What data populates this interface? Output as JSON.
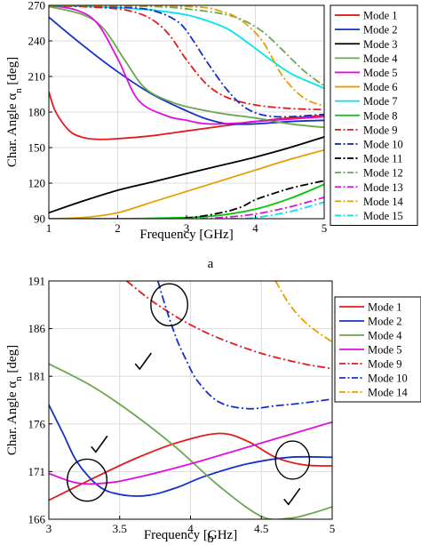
{
  "chart_data": [
    {
      "type": "line",
      "caption": "a",
      "xlabel": "Frequency [GHz]",
      "ylabel_main": "Char. Angle α",
      "ylabel_sub": "n",
      "ylabel_unit": " [deg]",
      "xlim": [
        1,
        5
      ],
      "ylim": [
        90,
        270
      ],
      "xticks": [
        "1",
        "2",
        "3",
        "4",
        "5"
      ],
      "yticks": [
        "90",
        "120",
        "150",
        "180",
        "210",
        "240",
        "270"
      ],
      "xtick_values": [
        1,
        2,
        3,
        4,
        5
      ],
      "ytick_values": [
        90,
        120,
        150,
        180,
        210,
        240,
        270
      ],
      "grid": true,
      "legend_position": "right",
      "series": [
        {
          "name": "Mode 1",
          "color": "#e41a1c",
          "dash": "solid",
          "x": [
            1,
            1.1,
            1.3,
            1.5,
            1.7,
            2,
            2.5,
            3,
            3.5,
            4,
            4.5,
            5
          ],
          "y": [
            197,
            180,
            164,
            158.5,
            157,
            157.5,
            160,
            164,
            168,
            172,
            175,
            177
          ]
        },
        {
          "name": "Mode 2",
          "color": "#1432c8",
          "dash": "solid",
          "x": [
            1,
            1.5,
            2,
            2.5,
            3,
            3.3,
            3.6,
            4,
            4.5,
            5
          ],
          "y": [
            260,
            236,
            214,
            195,
            181,
            174,
            170,
            170,
            172,
            173
          ]
        },
        {
          "name": "Mode 3",
          "color": "#000000",
          "dash": "solid",
          "x": [
            1,
            1.5,
            2,
            2.5,
            3,
            3.5,
            4,
            4.5,
            5
          ],
          "y": [
            95,
            105,
            114,
            121,
            128,
            135,
            142,
            150,
            159
          ]
        },
        {
          "name": "Mode 4",
          "color": "#6aa84f",
          "dash": "solid",
          "x": [
            1,
            1.5,
            1.8,
            2.1,
            2.4,
            2.8,
            3.2,
            3.6,
            4,
            4.5,
            5
          ],
          "y": [
            269,
            262,
            250,
            224,
            200,
            188,
            182,
            178,
            175,
            170,
            167
          ]
        },
        {
          "name": "Mode 5",
          "color": "#e00ee0",
          "dash": "solid",
          "x": [
            1,
            1.4,
            1.7,
            2,
            2.3,
            2.7,
            3,
            3.3,
            3.7,
            4,
            4.5,
            5
          ],
          "y": [
            270,
            266,
            255,
            225,
            190,
            177,
            173,
            170,
            170.5,
            172,
            174,
            176
          ]
        },
        {
          "name": "Mode 6",
          "color": "#e69f00",
          "dash": "solid",
          "x": [
            1,
            1.5,
            2,
            2.5,
            3,
            3.5,
            4,
            4.5,
            5
          ],
          "y": [
            90,
            91,
            95,
            104,
            113,
            122,
            131,
            140,
            148
          ]
        },
        {
          "name": "Mode 7",
          "color": "#00e5ee",
          "dash": "solid",
          "x": [
            1,
            2,
            2.5,
            3,
            3.3,
            3.6,
            3.9,
            4.2,
            4.5,
            4.8,
            5
          ],
          "y": [
            270,
            268,
            266,
            262,
            257,
            250,
            238,
            225,
            213,
            205,
            200
          ]
        },
        {
          "name": "Mode 8",
          "color": "#00c800",
          "dash": "solid",
          "x": [
            1,
            2,
            3,
            3.5,
            4,
            4.5,
            5
          ],
          "y": [
            90,
            90,
            91,
            93,
            98,
            107,
            119
          ]
        },
        {
          "name": "Mode 9",
          "color": "#e41a1c",
          "dash": "dashdot",
          "x": [
            1,
            1.8,
            2.2,
            2.5,
            2.75,
            3,
            3.3,
            3.6,
            4,
            4.5,
            5
          ],
          "y": [
            270,
            268,
            265,
            258,
            245,
            224,
            203,
            192,
            186,
            183,
            182
          ]
        },
        {
          "name": "Mode 10",
          "color": "#1432c8",
          "dash": "dashdot",
          "x": [
            1,
            2.2,
            2.6,
            2.9,
            3.1,
            3.3,
            3.6,
            3.9,
            4.3,
            5
          ],
          "y": [
            270,
            268,
            264,
            255,
            240,
            222,
            198,
            182,
            176,
            178
          ]
        },
        {
          "name": "Mode 11",
          "color": "#000000",
          "dash": "dashdot",
          "x": [
            1,
            2.5,
            3,
            3.5,
            3.8,
            4,
            4.3,
            4.6,
            5
          ],
          "y": [
            90,
            90,
            90.5,
            95,
            100,
            106,
            112,
            117,
            122
          ]
        },
        {
          "name": "Mode 12",
          "color": "#6aa84f",
          "dash": "dashdot",
          "x": [
            1,
            2.5,
            3,
            3.5,
            3.8,
            4.1,
            4.4,
            4.7,
            5
          ],
          "y": [
            270,
            269,
            267,
            263,
            258,
            248,
            232,
            215,
            202
          ]
        },
        {
          "name": "Mode 13",
          "color": "#e00ee0",
          "dash": "dashdot",
          "x": [
            1,
            3,
            3.5,
            4,
            4.5,
            5
          ],
          "y": [
            90,
            90,
            91,
            94,
            100,
            108
          ]
        },
        {
          "name": "Mode 14",
          "color": "#e69f00",
          "dash": "dashdot",
          "x": [
            1,
            3,
            3.5,
            3.8,
            4.1,
            4.4,
            4.7,
            5
          ],
          "y": [
            270,
            269,
            265,
            257,
            240,
            210,
            192,
            185
          ]
        },
        {
          "name": "Mode 15",
          "color": "#00e5ee",
          "dash": "dashdot",
          "x": [
            1,
            3.5,
            4,
            4.5,
            5
          ],
          "y": [
            90,
            90,
            91,
            96,
            104
          ]
        }
      ]
    },
    {
      "type": "line",
      "caption": "b",
      "xlabel": "Frequency [GHz]",
      "ylabel_main": "Char. Angle α",
      "ylabel_sub": "n",
      "ylabel_unit": " [deg]",
      "xlim": [
        3,
        5
      ],
      "ylim": [
        166,
        191
      ],
      "xticks": [
        "3",
        "3.5",
        "4",
        "4.5",
        "5"
      ],
      "yticks": [
        "166",
        "171",
        "176",
        "181",
        "186",
        "191"
      ],
      "xtick_values": [
        3,
        3.5,
        4,
        4.5,
        5
      ],
      "ytick_values": [
        166,
        171,
        176,
        181,
        186,
        191
      ],
      "grid": true,
      "legend_position": "top-right",
      "series": [
        {
          "name": "Mode 1",
          "color": "#e41a1c",
          "dash": "solid",
          "x": [
            3,
            3.3,
            3.6,
            3.9,
            4.2,
            4.4,
            4.6,
            4.8,
            5
          ],
          "y": [
            168,
            170.2,
            172.3,
            174,
            175,
            174.2,
            172.5,
            171.7,
            171.6
          ]
        },
        {
          "name": "Mode 2",
          "color": "#1432c8",
          "dash": "solid",
          "x": [
            3,
            3.1,
            3.2,
            3.35,
            3.5,
            3.7,
            3.9,
            4.1,
            4.4,
            4.7,
            5
          ],
          "y": [
            178,
            175,
            172,
            169.5,
            168.6,
            168.5,
            169.3,
            170.5,
            171.8,
            172.5,
            172.5
          ]
        },
        {
          "name": "Mode 4",
          "color": "#6aa84f",
          "dash": "solid",
          "x": [
            3,
            3.3,
            3.6,
            3.9,
            4.2,
            4.5,
            4.7,
            4.85,
            5
          ],
          "y": [
            182.3,
            180,
            177,
            173.5,
            169.5,
            166.3,
            166.1,
            166.6,
            167.3
          ]
        },
        {
          "name": "Mode 5",
          "color": "#e00ee0",
          "dash": "solid",
          "x": [
            3,
            3.2,
            3.4,
            3.6,
            4,
            4.5,
            5
          ],
          "y": [
            170.8,
            169.8,
            169.8,
            170.3,
            171.8,
            174,
            176.2
          ]
        },
        {
          "name": "Mode 9",
          "color": "#e41a1c",
          "dash": "dashdot",
          "x": [
            3.55,
            3.7,
            3.85,
            4,
            4.2,
            4.5,
            4.8,
            5
          ],
          "y": [
            191,
            189.2,
            187.7,
            186.4,
            185,
            183.4,
            182.3,
            181.8
          ]
        },
        {
          "name": "Mode 10",
          "color": "#1432c8",
          "dash": "dashdot",
          "x": [
            3.77,
            3.83,
            3.9,
            3.96,
            4.05,
            4.2,
            4.4,
            4.6,
            4.8,
            5
          ],
          "y": [
            191,
            188,
            185,
            183,
            180.5,
            178.3,
            177.6,
            177.9,
            178.2,
            178.6
          ]
        },
        {
          "name": "Mode 14",
          "color": "#e69f00",
          "dash": "dashdot",
          "x": [
            4.6,
            4.7,
            4.8,
            4.9,
            5
          ],
          "y": [
            191,
            188.5,
            186.8,
            185.6,
            184.6
          ]
        }
      ],
      "annotations": [
        {
          "type": "ellipse",
          "cx": 3.27,
          "cy": 170.1,
          "rx": 0.14,
          "ry": 2.2
        },
        {
          "type": "ellipse",
          "cx": 3.85,
          "cy": 188.5,
          "rx": 0.13,
          "ry": 2.2
        },
        {
          "type": "ellipse",
          "cx": 4.72,
          "cy": 172.2,
          "rx": 0.12,
          "ry": 2.0
        },
        {
          "type": "checkmark",
          "x": 3.35,
          "y": 173.8
        },
        {
          "type": "checkmark",
          "x": 3.66,
          "y": 182.5
        },
        {
          "type": "checkmark",
          "x": 4.71,
          "y": 168.3
        }
      ]
    }
  ]
}
